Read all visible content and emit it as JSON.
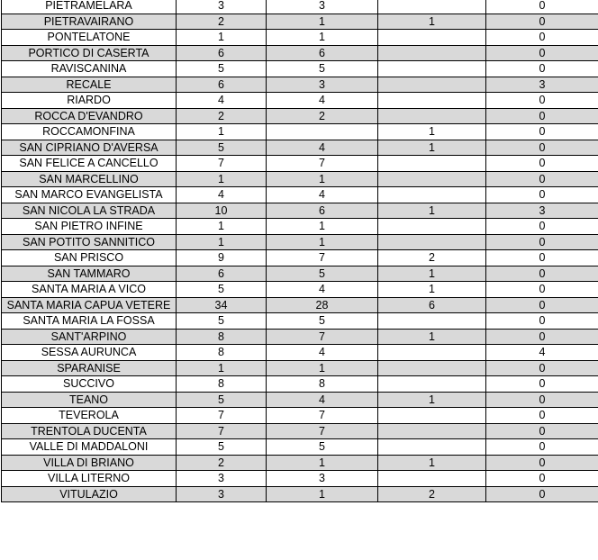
{
  "colors": {
    "alt_row": "#d9d9d9",
    "border": "#000000"
  },
  "rows": [
    [
      "PIETRAMELARA",
      "3",
      "3",
      "",
      "0"
    ],
    [
      "PIETRAVAIRANO",
      "2",
      "1",
      "1",
      "0"
    ],
    [
      "PONTELATONE",
      "1",
      "1",
      "",
      "0"
    ],
    [
      "PORTICO DI CASERTA",
      "6",
      "6",
      "",
      "0"
    ],
    [
      "RAVISCANINA",
      "5",
      "5",
      "",
      "0"
    ],
    [
      "RECALE",
      "6",
      "3",
      "",
      "3"
    ],
    [
      "RIARDO",
      "4",
      "4",
      "",
      "0"
    ],
    [
      "ROCCA D'EVANDRO",
      "2",
      "2",
      "",
      "0"
    ],
    [
      "ROCCAMONFINA",
      "1",
      "",
      "1",
      "0"
    ],
    [
      "SAN CIPRIANO D'AVERSA",
      "5",
      "4",
      "1",
      "0"
    ],
    [
      "SAN FELICE A CANCELLO",
      "7",
      "7",
      "",
      "0"
    ],
    [
      "SAN MARCELLINO",
      "1",
      "1",
      "",
      "0"
    ],
    [
      "SAN MARCO EVANGELISTA",
      "4",
      "4",
      "",
      "0"
    ],
    [
      "SAN NICOLA LA STRADA",
      "10",
      "6",
      "1",
      "3"
    ],
    [
      "SAN PIETRO INFINE",
      "1",
      "1",
      "",
      "0"
    ],
    [
      "SAN POTITO SANNITICO",
      "1",
      "1",
      "",
      "0"
    ],
    [
      "SAN PRISCO",
      "9",
      "7",
      "2",
      "0"
    ],
    [
      "SAN TAMMARO",
      "6",
      "5",
      "1",
      "0"
    ],
    [
      "SANTA MARIA A VICO",
      "5",
      "4",
      "1",
      "0"
    ],
    [
      "SANTA MARIA CAPUA VETERE",
      "34",
      "28",
      "6",
      "0"
    ],
    [
      "SANTA MARIA LA FOSSA",
      "5",
      "5",
      "",
      "0"
    ],
    [
      "SANT'ARPINO",
      "8",
      "7",
      "1",
      "0"
    ],
    [
      "SESSA AURUNCA",
      "8",
      "4",
      "",
      "4"
    ],
    [
      "SPARANISE",
      "1",
      "1",
      "",
      "0"
    ],
    [
      "SUCCIVO",
      "8",
      "8",
      "",
      "0"
    ],
    [
      "TEANO",
      "5",
      "4",
      "1",
      "0"
    ],
    [
      "TEVEROLA",
      "7",
      "7",
      "",
      "0"
    ],
    [
      "TRENTOLA DUCENTA",
      "7",
      "7",
      "",
      "0"
    ],
    [
      "VALLE DI MADDALONI",
      "5",
      "5",
      "",
      "0"
    ],
    [
      "VILLA DI BRIANO",
      "2",
      "1",
      "1",
      "0"
    ],
    [
      "VILLA LITERNO",
      "3",
      "3",
      "",
      "0"
    ],
    [
      "VITULAZIO",
      "3",
      "1",
      "2",
      "0"
    ]
  ]
}
